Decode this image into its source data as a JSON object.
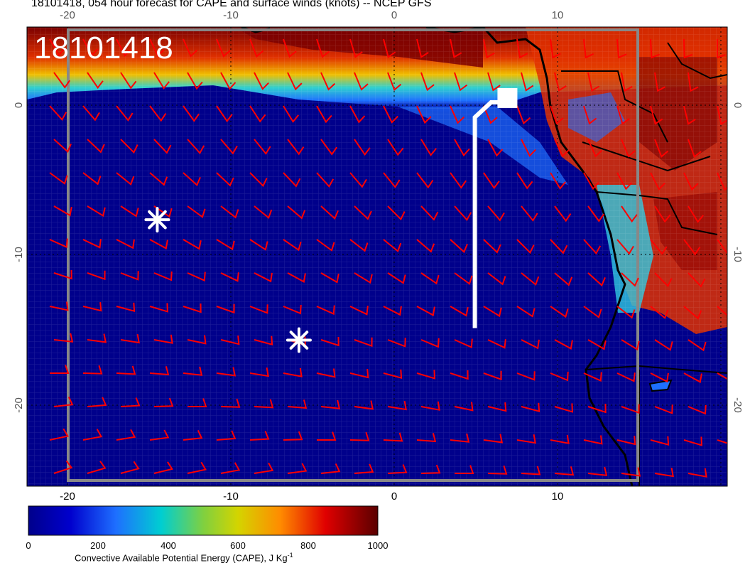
{
  "title": "18101418, 054 hour forecast for CAPE and surface winds (knots) -- NCEP GFS",
  "stamp": "18101418",
  "axes": {
    "x_top_ticks": [
      "-20",
      "-10",
      "0",
      "10"
    ],
    "x_bottom_ticks": [
      "-20",
      "-10",
      "0",
      "10"
    ],
    "y_left_ticks": [
      "0",
      "-10",
      "-20"
    ],
    "y_right_ticks": [
      "0",
      "-10",
      "-20"
    ]
  },
  "colorbar": {
    "ticks": [
      "0",
      "200",
      "400",
      "600",
      "800",
      "1000"
    ],
    "label_text": "Convective Available Potential Energy (CAPE), J Kg",
    "label_sup": "-1",
    "colors": [
      "#00008b",
      "#0000cd",
      "#1e90ff",
      "#00ced1",
      "#7fff00",
      "#ffd700",
      "#ff8c00",
      "#ff0000",
      "#8b0000",
      "#5a0000"
    ]
  },
  "map_data": {
    "lon_range": [
      -22.5,
      20.5
    ],
    "lat_range": [
      -25.5,
      5
    ],
    "markers": [
      {
        "type": "asterisk",
        "lon": -14.5,
        "lat": -7.8
      },
      {
        "type": "asterisk",
        "lon": -5.8,
        "lat": -15.8
      }
    ],
    "flight_track": [
      [
        5,
        -15
      ],
      [
        5,
        -1
      ],
      [
        6,
        0
      ],
      [
        7,
        0
      ]
    ],
    "colors": {
      "wind_barbs": "#ff0000",
      "ocean_low_cape": "#00008b",
      "high_cape": "#8b0000",
      "track": "#ffffff"
    }
  }
}
